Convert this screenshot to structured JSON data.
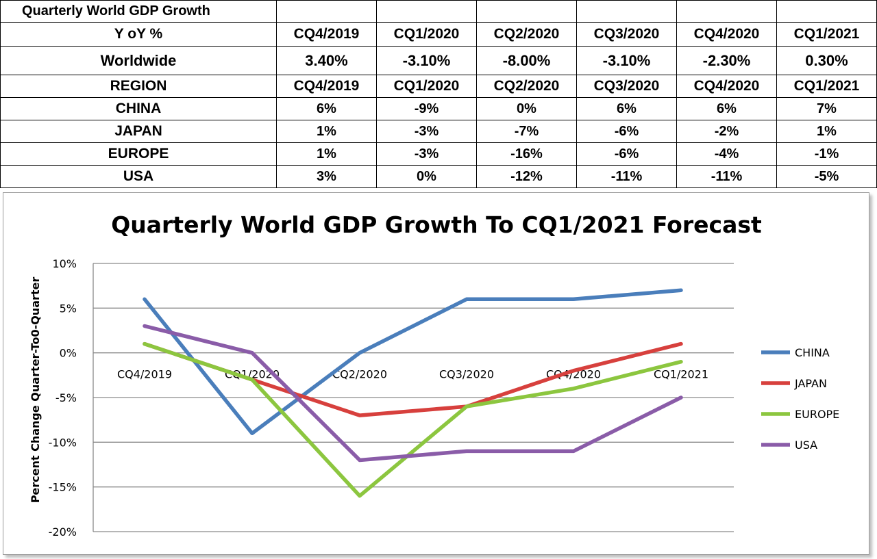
{
  "table": {
    "title": "Quarterly World GDP Growth",
    "yoy_label": "Y oY %",
    "quarters": [
      "CQ4/2019",
      "CQ1/2020",
      "CQ2/2020",
      "CQ3/2020",
      "CQ4/2020",
      "CQ1/2021"
    ],
    "worldwide": {
      "label": "Worldwide",
      "values": [
        "3.40%",
        "-3.10%",
        "-8.00%",
        "-3.10%",
        "-2.30%",
        "0.30%"
      ]
    },
    "region_label": "REGION",
    "regions": [
      {
        "name": "CHINA",
        "values": [
          "6%",
          "-9%",
          "0%",
          "6%",
          "6%",
          "7%"
        ]
      },
      {
        "name": "JAPAN",
        "values": [
          "1%",
          "-3%",
          "-7%",
          "-6%",
          "-2%",
          "1%"
        ]
      },
      {
        "name": "EUROPE",
        "values": [
          "1%",
          "-3%",
          "-16%",
          "-6%",
          "-4%",
          "-1%"
        ]
      },
      {
        "name": "USA",
        "values": [
          "3%",
          "0%",
          "-12%",
          "-11%",
          "-11%",
          "-5%"
        ]
      }
    ]
  },
  "chart_data": {
    "type": "line",
    "title": "Quarterly World GDP Growth To CQ1/2021 Forecast",
    "ylabel": "Percent Change Quarter-To0-Quarter",
    "xlabel": "",
    "categories": [
      "CQ4/2019",
      "CQ1/2020",
      "CQ2/2020",
      "CQ3/2020",
      "CQ4/2020",
      "CQ1/2021"
    ],
    "ylim": [
      -20,
      10
    ],
    "yticks": [
      10,
      5,
      0,
      -5,
      -10,
      -15,
      -20
    ],
    "ytick_labels": [
      "10%",
      "5%",
      "0%",
      "-5%",
      "-10%",
      "-15%",
      "-20%"
    ],
    "grid": true,
    "legend_position": "right",
    "series": [
      {
        "name": "CHINA",
        "color": "#4a7ebb",
        "values": [
          6,
          -9,
          0,
          6,
          6,
          7
        ]
      },
      {
        "name": "JAPAN",
        "color": "#d7403d",
        "values": [
          1,
          -3,
          -7,
          -6,
          -2,
          1
        ]
      },
      {
        "name": "EUROPE",
        "color": "#8cc63f",
        "values": [
          1,
          -3,
          -16,
          -6,
          -4,
          -1
        ]
      },
      {
        "name": "USA",
        "color": "#8a5ca8",
        "values": [
          3,
          0,
          -12,
          -11,
          -11,
          -5
        ]
      }
    ]
  }
}
